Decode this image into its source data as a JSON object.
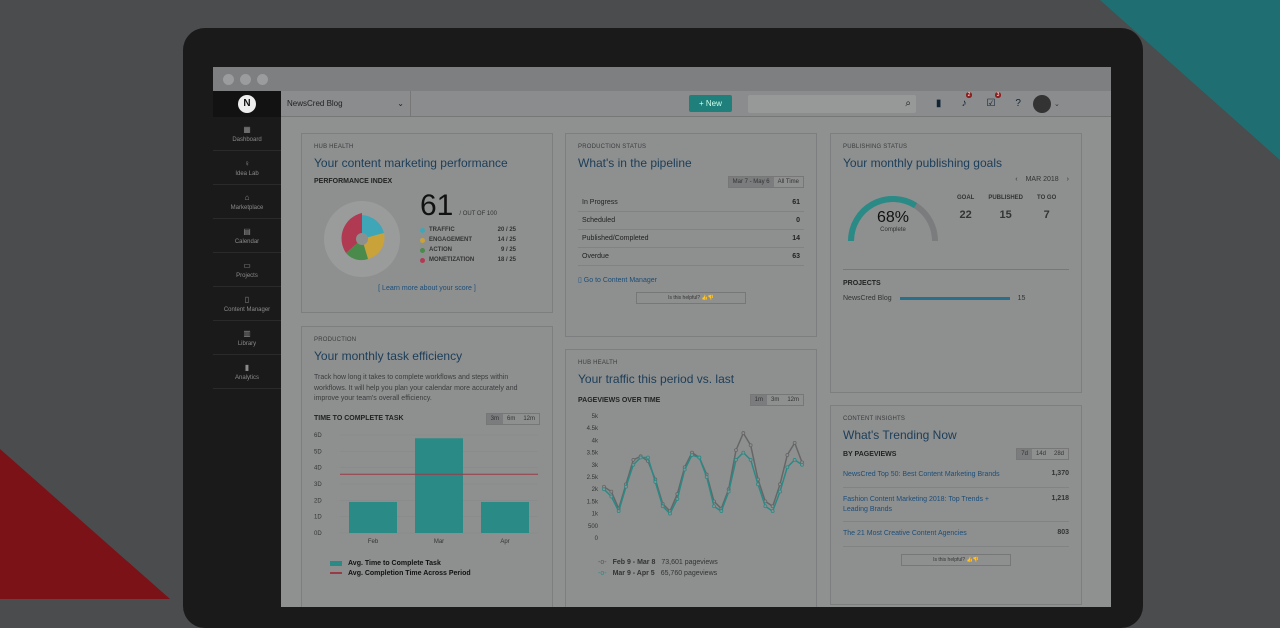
{
  "topbar": {
    "blog": "NewsCred Blog",
    "new_label": "New",
    "notif_badge": "2",
    "tasks_badge": "3"
  },
  "sidebar": {
    "items": [
      {
        "label": "Dashboard",
        "icon": "grid-icon",
        "glyph": "▦"
      },
      {
        "label": "Idea Lab",
        "icon": "bulb-icon",
        "glyph": "♀"
      },
      {
        "label": "Marketplace",
        "icon": "store-icon",
        "glyph": "⌂"
      },
      {
        "label": "Calendar",
        "icon": "calendar-icon",
        "glyph": "▤"
      },
      {
        "label": "Projects",
        "icon": "folder-icon",
        "glyph": "▭"
      },
      {
        "label": "Content Manager",
        "icon": "document-icon",
        "glyph": "▯"
      },
      {
        "label": "Library",
        "icon": "library-icon",
        "glyph": "▥"
      },
      {
        "label": "Analytics",
        "icon": "bar-chart-icon",
        "glyph": "▮"
      }
    ]
  },
  "hub": {
    "kicker": "HUB HEALTH",
    "title": "Your content marketing performance",
    "index_label": "PERFORMANCE INDEX",
    "score": "61",
    "out_of": "/ OUT OF 100",
    "metrics": [
      {
        "name": "TRAFFIC",
        "value": "20 / 25",
        "color": "#3fa6b8"
      },
      {
        "name": "ENGAGEMENT",
        "value": "14 / 25",
        "color": "#c9a23a"
      },
      {
        "name": "ACTION",
        "value": "9 / 25",
        "color": "#4a8a4a"
      },
      {
        "name": "MONETIZATION",
        "value": "18 / 25",
        "color": "#b03a52"
      }
    ],
    "learn_more": "[ Learn more about your score ]"
  },
  "pipeline": {
    "kicker": "PRODUCTION STATUS",
    "title": "What's in the pipeline",
    "range_options": [
      "Mar 7 - May 6",
      "All Time"
    ],
    "rows": [
      {
        "label": "In Progress",
        "value": "61"
      },
      {
        "label": "Scheduled",
        "value": "0"
      },
      {
        "label": "Published/Completed",
        "value": "14"
      },
      {
        "label": "Overdue",
        "value": "63"
      }
    ],
    "link": "Go to Content Manager",
    "helpful": "Is this helpful?"
  },
  "publishing": {
    "kicker": "PUBLISHING STATUS",
    "title": "Your monthly publishing goals",
    "month": "MAR 2018",
    "percent": "68%",
    "complete": "Complete",
    "cols": [
      {
        "label": "GOAL",
        "value": "22"
      },
      {
        "label": "PUBLISHED",
        "value": "15"
      },
      {
        "label": "TO GO",
        "value": "7"
      }
    ],
    "projects_label": "PROJECTS",
    "project_name": "NewsCred Blog",
    "project_value": "15"
  },
  "task": {
    "kicker": "PRODUCTION",
    "title": "Your monthly task efficiency",
    "desc": "Track how long it takes to complete workflows and steps within workflows. It will help you plan your calendar more accurately and improve your team's overall efficiency.",
    "chart_title": "TIME TO COMPLETE TASK",
    "ranges": [
      "3m",
      "6m",
      "12m"
    ],
    "legend_bar": "Avg. Time to Complete Task",
    "legend_line": "Avg. Completion Time Across Period"
  },
  "traffic": {
    "kicker": "HUB HEALTH",
    "title": "Your traffic this period vs. last",
    "chart_title": "PAGEVIEWS OVER TIME",
    "ranges": [
      "1m",
      "3m",
      "12m"
    ],
    "legend1_period": "Feb 9 - Mar 8",
    "legend1_value": "73,601 pageviews",
    "legend2_period": "Mar 9 - Apr 5",
    "legend2_value": "65,760 pageviews"
  },
  "trending": {
    "kicker": "CONTENT INSIGHTS",
    "title": "What's Trending Now",
    "by": "BY PAGEVIEWS",
    "ranges": [
      "7d",
      "14d",
      "28d"
    ],
    "items": [
      {
        "title": "NewsCred Top 50: Best Content Marketing Brands",
        "value": "1,370"
      },
      {
        "title": "Fashion Content Marketing 2018: Top Trends + Leading Brands",
        "value": "1,218"
      },
      {
        "title": "The 21 Most Creative Content Agencies",
        "value": "803"
      }
    ],
    "helpful": "Is this helpful?"
  },
  "chart_data": [
    {
      "type": "bar",
      "title": "TIME TO COMPLETE TASK",
      "categories": [
        "Feb",
        "Mar",
        "Apr"
      ],
      "series": [
        {
          "name": "Avg. Time to Complete Task",
          "values": [
            19,
            58,
            19
          ]
        },
        {
          "name": "Avg. Completion Time Across Period",
          "values": [
            36,
            36,
            36
          ]
        }
      ],
      "yticks": [
        "6D",
        "5D",
        "4D",
        "3D",
        "2D",
        "1D",
        "0D"
      ],
      "ylim": [
        0,
        60
      ]
    },
    {
      "type": "line",
      "title": "PAGEVIEWS OVER TIME",
      "yticks": [
        "5k",
        "4.5k",
        "4k",
        "3.5k",
        "3k",
        "2.5k",
        "2k",
        "1.5k",
        "1k",
        "500",
        "0"
      ],
      "ylim": [
        0,
        5000
      ],
      "series": [
        {
          "name": "Feb 9 - Mar 8",
          "values": [
            2100,
            1900,
            1200,
            2200,
            3200,
            3350,
            3150,
            2400,
            1400,
            1100,
            1800,
            2900,
            3500,
            3300,
            2600,
            1500,
            1200,
            2000,
            3600,
            4300,
            3800,
            2400,
            1500,
            1300,
            2200,
            3400,
            3900,
            3100
          ]
        },
        {
          "name": "Mar 9 - Apr 5",
          "values": [
            2000,
            1700,
            1100,
            2100,
            3000,
            3300,
            3300,
            2300,
            1300,
            1000,
            1600,
            2800,
            3400,
            3300,
            2500,
            1300,
            1100,
            1900,
            3200,
            3500,
            3200,
            2200,
            1300,
            1100,
            1900,
            2900,
            3200,
            3000
          ]
        }
      ]
    }
  ]
}
